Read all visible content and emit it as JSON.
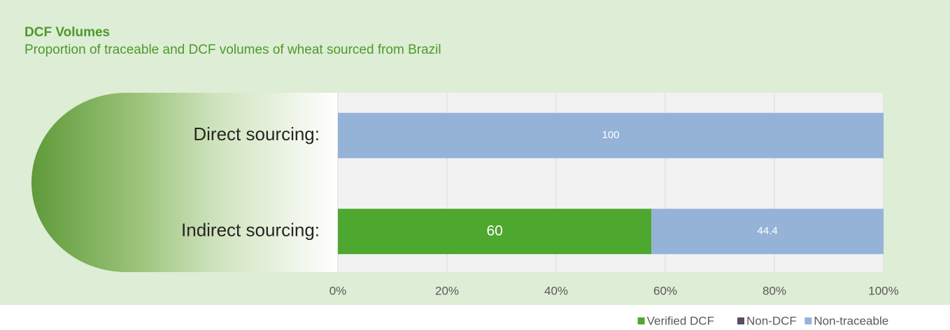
{
  "chart_data": {
    "type": "bar",
    "orientation": "horizontal",
    "stacking": "percent",
    "title": "DCF Volumes",
    "subtitle": "Proportion of traceable and DCF volumes of wheat sourced from Brazil",
    "categories": [
      "Direct sourcing:",
      "Indirect sourcing:"
    ],
    "series": [
      {
        "name": "Verified DCF",
        "color": "#4ea72e",
        "values": [
          0,
          60
        ]
      },
      {
        "name": "Non-DCF",
        "color": "#5b4a63",
        "values": [
          0,
          0
        ]
      },
      {
        "name": "Non-traceable",
        "color": "#95b3d7",
        "values": [
          100,
          44.4
        ]
      }
    ],
    "xlim": [
      0,
      100
    ],
    "xticks": [
      {
        "value": 0,
        "label": "0%"
      },
      {
        "value": 20,
        "label": "20%"
      },
      {
        "value": 40,
        "label": "40%"
      },
      {
        "value": 60,
        "label": "60%"
      },
      {
        "value": 80,
        "label": "80%"
      },
      {
        "value": 100,
        "label": "100%"
      }
    ],
    "grid": true,
    "legend": "bottom-right"
  }
}
